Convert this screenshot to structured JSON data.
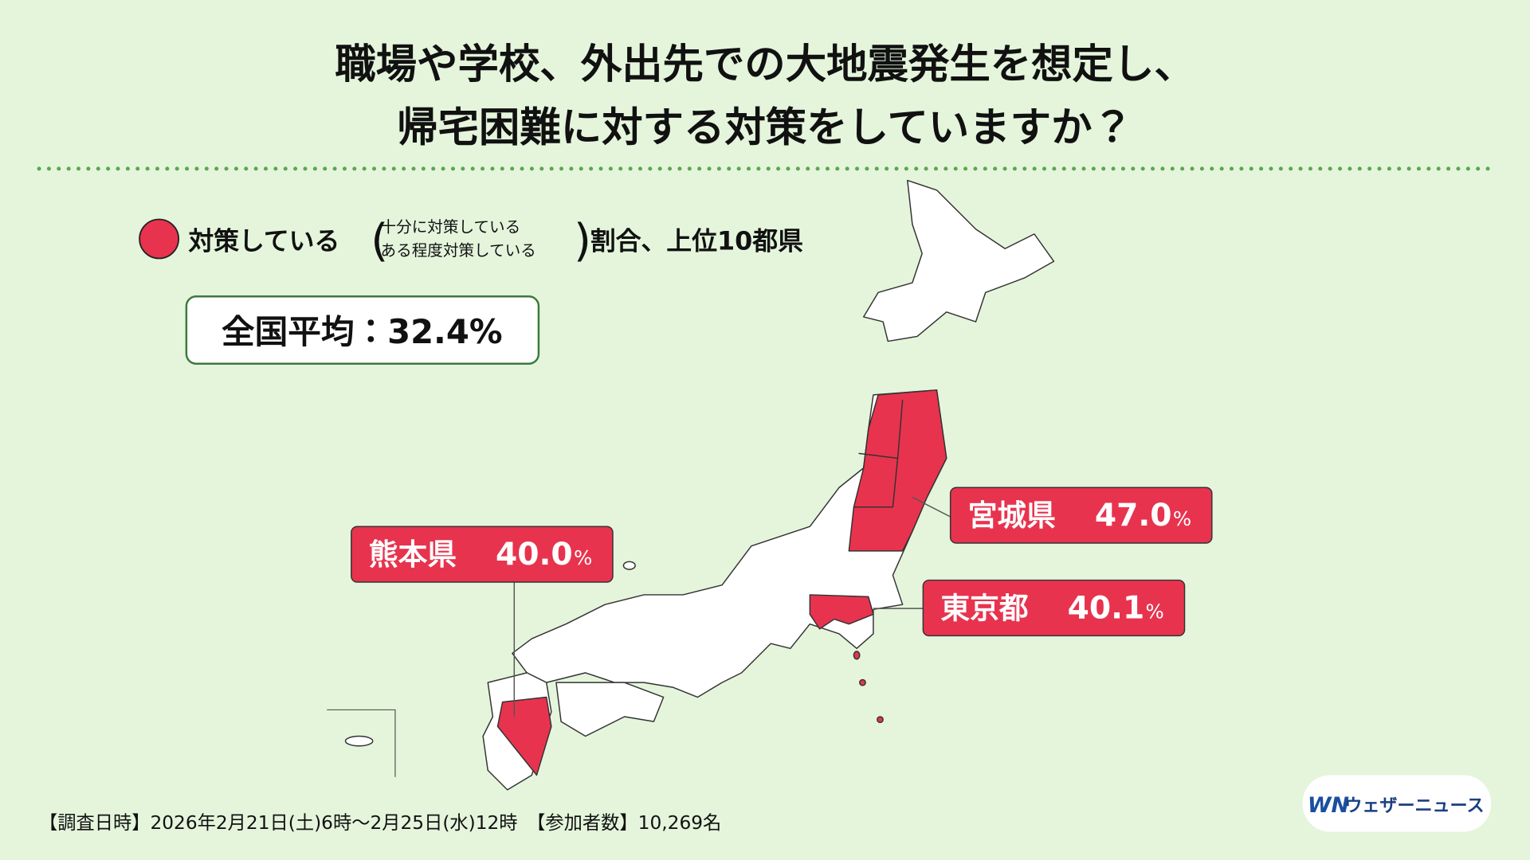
{
  "header": {
    "title": [
      "職場や学校、外出先での大地震発生を想定し、",
      "帰宅困難に対する対策をしていますか？"
    ]
  },
  "legend": {
    "label": "対策している",
    "sub": [
      "十分に対策している",
      "ある程度対策している"
    ],
    "suffix": "割合、上位10都県"
  },
  "average": "全国平均：32.4%",
  "callouts": [
    {
      "name": "宮城県",
      "value": "47.0",
      "unit": "%"
    },
    {
      "name": "東京都",
      "value": "40.1",
      "unit": "%"
    },
    {
      "name": "熊本県",
      "value": "40.0",
      "unit": "%"
    }
  ],
  "footer": "【調査日時】2026年2月21日(土)6時〜2月25日(水)12時　【参加者数】10,269名",
  "logo": {
    "mark": "WN",
    "text": "ウェザーニュース"
  }
}
